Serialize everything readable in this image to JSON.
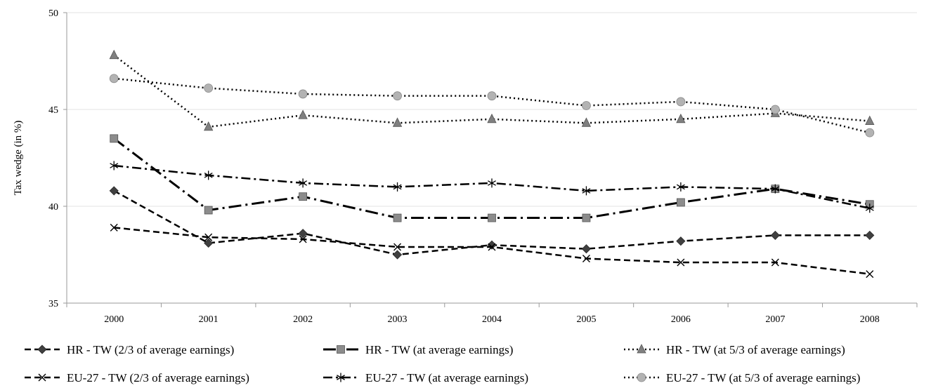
{
  "chart_data": {
    "type": "line",
    "title": "",
    "xlabel": "",
    "ylabel": "Tax wedge  (in %)",
    "x": [
      "2000",
      "2001",
      "2002",
      "2003",
      "2004",
      "2005",
      "2006",
      "2007",
      "2008"
    ],
    "ylim": [
      35,
      50
    ],
    "yticks": [
      35,
      40,
      45,
      50
    ],
    "grid": "horizontal",
    "legend_position": "bottom",
    "series": [
      {
        "name": "HR - TW (2/3 of average earnings)",
        "values": [
          40.8,
          38.1,
          38.6,
          37.5,
          38.0,
          37.8,
          38.2,
          38.5,
          38.5
        ],
        "marker": "diamond",
        "line": "dashed",
        "color": "#000000",
        "marker_color": "#404040"
      },
      {
        "name": "HR - TW (at average earnings)",
        "values": [
          43.5,
          39.8,
          40.5,
          39.4,
          39.4,
          39.4,
          40.2,
          40.9,
          40.1
        ],
        "marker": "square",
        "line": "long-dash-dot",
        "color": "#000000",
        "marker_color": "#8c8c8c"
      },
      {
        "name": "HR - TW (at 5/3 of average earnings)",
        "values": [
          47.8,
          44.1,
          44.7,
          44.3,
          44.5,
          44.3,
          44.5,
          44.8,
          44.4
        ],
        "marker": "triangle",
        "line": "dotted",
        "color": "#000000",
        "marker_color": "#808080"
      },
      {
        "name": "EU-27 - TW (2/3 of average earnings)",
        "values": [
          38.9,
          38.4,
          38.3,
          37.9,
          37.9,
          37.3,
          37.1,
          37.1,
          36.5
        ],
        "marker": "x",
        "line": "dashed",
        "color": "#000000",
        "marker_color": "#000000"
      },
      {
        "name": "EU-27 - TW (at average earnings)",
        "values": [
          42.1,
          41.6,
          41.2,
          41.0,
          41.2,
          40.8,
          41.0,
          40.9,
          39.9
        ],
        "marker": "star",
        "line": "dash-dot",
        "color": "#000000",
        "marker_color": "#000000"
      },
      {
        "name": "EU-27 - TW (at 5/3 of average earnings)",
        "values": [
          46.6,
          46.1,
          45.8,
          45.7,
          45.7,
          45.2,
          45.4,
          45.0,
          43.8
        ],
        "marker": "circle",
        "line": "dotted",
        "color": "#000000",
        "marker_color": "#b3b3b3"
      }
    ]
  }
}
